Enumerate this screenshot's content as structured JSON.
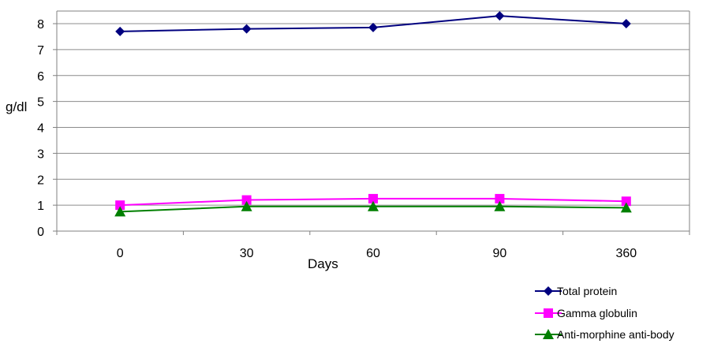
{
  "chart_data": {
    "type": "line",
    "categories": [
      "0",
      "30",
      "60",
      "90",
      "360"
    ],
    "xlabel": "Days",
    "ylabel": "g/dl",
    "ylim": [
      0,
      8
    ],
    "yticks": [
      "0",
      "1",
      "2",
      "3",
      "4",
      "5",
      "6",
      "7",
      "8"
    ],
    "grid": true,
    "legend_position": "bottom-right",
    "series": [
      {
        "name": "Total protein",
        "values": [
          7.7,
          7.8,
          7.85,
          8.3,
          8.0
        ],
        "color": "#00007f",
        "marker": "diamond"
      },
      {
        "name": "Gamma globulin",
        "values": [
          1.0,
          1.2,
          1.25,
          1.25,
          1.15
        ],
        "color": "#ff00ff",
        "marker": "square"
      },
      {
        "name": "Anti-morphine anti-body",
        "values": [
          0.75,
          0.95,
          0.95,
          0.95,
          0.9
        ],
        "color": "#007f00",
        "marker": "triangle"
      }
    ]
  }
}
